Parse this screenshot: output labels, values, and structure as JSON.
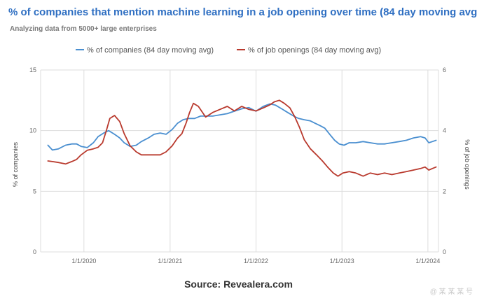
{
  "header": {
    "title": "% of companies that mention machine learning in a job opening over time (84 day moving avg)",
    "subtitle": "Analyzing data from 5000+ large enterprises"
  },
  "footer": {
    "source": "Source: Revealera.com",
    "watermark": "@ 某 某 某 号"
  },
  "colors": {
    "companies": "#4a8fd0",
    "openings": "#b93a2e",
    "grid": "#dddddd",
    "title": "#2f6fc2"
  },
  "chart_data": {
    "type": "line",
    "title": "% of companies that mention machine learning in a job opening over time (84 day moving avg)",
    "subtitle": "Analyzing data from 5000+ large enterprises",
    "x_ticks": [
      "1/1/2020",
      "1/1/2021",
      "1/1/2022",
      "1/1/2023",
      "1/1/2024"
    ],
    "xlim": [
      "2019-07-01",
      "2024-02-15"
    ],
    "ylabel_left": "% of companies",
    "ylabel_right": "% of job openings",
    "ylim_left": [
      0,
      15
    ],
    "ylim_right": [
      0,
      6
    ],
    "yticks_left": [
      "0",
      "5",
      "10",
      "15"
    ],
    "yticks_right": [
      "0",
      "2",
      "4",
      "6"
    ],
    "grid": true,
    "legend_position": "top",
    "series": [
      {
        "name": "% of companies (84 day moving avg)",
        "axis": "left",
        "color": "#4a8fd0",
        "x": [
          "2019-08-01",
          "2019-08-20",
          "2019-09-15",
          "2019-10-15",
          "2019-11-10",
          "2019-12-01",
          "2019-12-20",
          "2020-01-15",
          "2020-02-10",
          "2020-03-01",
          "2020-03-25",
          "2020-04-15",
          "2020-05-10",
          "2020-06-01",
          "2020-06-20",
          "2020-07-15",
          "2020-08-10",
          "2020-09-01",
          "2020-10-01",
          "2020-10-25",
          "2020-11-20",
          "2020-12-15",
          "2021-01-10",
          "2021-02-01",
          "2021-02-25",
          "2021-03-20",
          "2021-04-15",
          "2021-05-10",
          "2021-06-01",
          "2021-07-01",
          "2021-08-01",
          "2021-09-01",
          "2021-10-01",
          "2021-11-01",
          "2021-12-01",
          "2022-01-01",
          "2022-02-01",
          "2022-03-01",
          "2022-03-25",
          "2022-04-20",
          "2022-05-15",
          "2022-06-10",
          "2022-07-01",
          "2022-07-25",
          "2022-08-20",
          "2022-09-10",
          "2022-10-01",
          "2022-10-20",
          "2022-11-10",
          "2022-12-01",
          "2022-12-20",
          "2023-01-10",
          "2023-02-01",
          "2023-03-01",
          "2023-04-01",
          "2023-05-01",
          "2023-06-01",
          "2023-07-01",
          "2023-08-01",
          "2023-09-01",
          "2023-10-01",
          "2023-11-01",
          "2023-12-01",
          "2023-12-20",
          "2024-01-05",
          "2024-01-20",
          "2024-02-05"
        ],
        "y": [
          8.8,
          8.4,
          8.5,
          8.8,
          8.9,
          8.9,
          8.7,
          8.6,
          9.0,
          9.5,
          9.8,
          10.0,
          9.7,
          9.4,
          9.0,
          8.7,
          8.8,
          9.1,
          9.4,
          9.7,
          9.8,
          9.7,
          10.1,
          10.6,
          10.9,
          11.0,
          11.0,
          11.2,
          11.2,
          11.2,
          11.3,
          11.4,
          11.6,
          11.8,
          11.9,
          11.6,
          12.0,
          12.2,
          12.1,
          11.8,
          11.5,
          11.2,
          11.0,
          10.9,
          10.8,
          10.6,
          10.4,
          10.2,
          9.7,
          9.2,
          8.9,
          8.8,
          9.0,
          9.0,
          9.1,
          9.0,
          8.9,
          8.9,
          9.0,
          9.1,
          9.2,
          9.4,
          9.5,
          9.4,
          9.0,
          9.1,
          9.2
        ]
      },
      {
        "name": "% of job openings (84 day moving avg)",
        "axis": "right",
        "color": "#b93a2e",
        "x": [
          "2019-08-01",
          "2019-08-20",
          "2019-09-15",
          "2019-10-15",
          "2019-11-10",
          "2019-12-01",
          "2019-12-20",
          "2020-01-15",
          "2020-02-10",
          "2020-03-01",
          "2020-03-20",
          "2020-04-05",
          "2020-04-20",
          "2020-05-10",
          "2020-06-01",
          "2020-06-20",
          "2020-07-15",
          "2020-08-10",
          "2020-09-01",
          "2020-10-01",
          "2020-10-25",
          "2020-11-20",
          "2020-12-15",
          "2021-01-10",
          "2021-02-01",
          "2021-02-20",
          "2021-03-10",
          "2021-03-25",
          "2021-04-10",
          "2021-05-01",
          "2021-06-01",
          "2021-07-01",
          "2021-08-01",
          "2021-09-01",
          "2021-10-01",
          "2021-11-01",
          "2021-12-01",
          "2022-01-01",
          "2022-02-01",
          "2022-03-01",
          "2022-03-20",
          "2022-04-10",
          "2022-05-01",
          "2022-05-25",
          "2022-06-15",
          "2022-07-05",
          "2022-07-25",
          "2022-08-20",
          "2022-09-15",
          "2022-10-10",
          "2022-11-01",
          "2022-11-25",
          "2022-12-15",
          "2023-01-05",
          "2023-02-01",
          "2023-03-01",
          "2023-04-01",
          "2023-05-01",
          "2023-06-01",
          "2023-07-01",
          "2023-08-01",
          "2023-09-01",
          "2023-10-01",
          "2023-11-01",
          "2023-12-01",
          "2023-12-20",
          "2024-01-05",
          "2024-01-20",
          "2024-02-05"
        ],
        "y": [
          3.0,
          2.98,
          2.95,
          2.9,
          2.98,
          3.05,
          3.2,
          3.35,
          3.4,
          3.45,
          3.6,
          4.0,
          4.4,
          4.5,
          4.3,
          3.9,
          3.5,
          3.3,
          3.2,
          3.2,
          3.2,
          3.2,
          3.3,
          3.5,
          3.75,
          3.9,
          4.25,
          4.6,
          4.9,
          4.8,
          4.45,
          4.6,
          4.7,
          4.8,
          4.65,
          4.8,
          4.7,
          4.65,
          4.75,
          4.85,
          4.95,
          5.0,
          4.9,
          4.75,
          4.45,
          4.1,
          3.7,
          3.4,
          3.2,
          3.0,
          2.8,
          2.6,
          2.5,
          2.6,
          2.65,
          2.6,
          2.5,
          2.6,
          2.55,
          2.6,
          2.55,
          2.6,
          2.65,
          2.7,
          2.75,
          2.8,
          2.7,
          2.75,
          2.8
        ]
      }
    ]
  }
}
